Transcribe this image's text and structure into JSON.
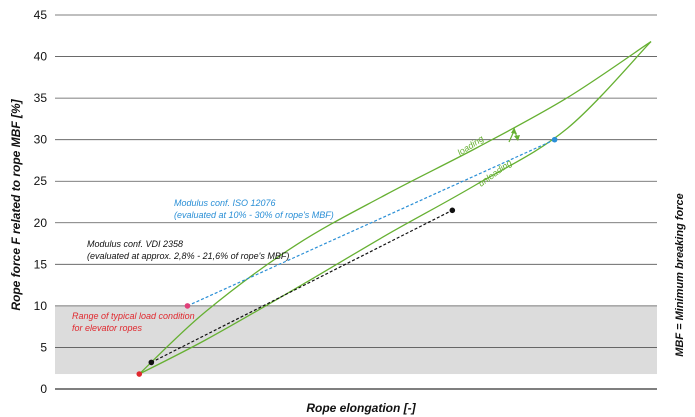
{
  "chart_data": {
    "type": "line",
    "title": "",
    "xlabel": "Rope elongation [-]",
    "ylabel": "Rope force F related to rope MBF [%]",
    "side_note": "MBF = Minimum breaking force",
    "ylim": [
      0,
      45
    ],
    "xlim": [
      0,
      100
    ],
    "yticks": [
      0,
      5,
      10,
      15,
      20,
      25,
      30,
      35,
      40,
      45
    ],
    "grid": "horizontal",
    "shaded_band": {
      "y_from": 1.8,
      "y_to": 10,
      "color": "#dcdcdc"
    },
    "series": [
      {
        "name": "loading",
        "color": "#66b032",
        "x": [
          14,
          25,
          40,
          55,
          70,
          85,
          99
        ],
        "y": [
          1.8,
          9.3,
          17.3,
          23.4,
          29.0,
          35.0,
          41.8
        ]
      },
      {
        "name": "unloading",
        "color": "#66b032",
        "x": [
          99,
          85,
          70,
          55,
          40,
          25,
          14
        ],
        "y": [
          41.8,
          31.3,
          24.6,
          18.5,
          12.1,
          5.9,
          1.8
        ]
      },
      {
        "name": "Modulus conf. ISO 12076",
        "color": "#2a8fd6",
        "dash": true,
        "x": [
          22,
          83
        ],
        "y": [
          10,
          30
        ]
      },
      {
        "name": "Modulus conf. VDI 2358",
        "color": "#111111",
        "dash": true,
        "x": [
          16,
          66
        ],
        "y": [
          3.2,
          21.5
        ]
      }
    ],
    "points": [
      {
        "x": 14,
        "y": 1.8,
        "color": "#e0282e"
      },
      {
        "x": 16,
        "y": 3.2,
        "color": "#111111"
      },
      {
        "x": 22,
        "y": 10,
        "color": "#e0407a"
      },
      {
        "x": 66,
        "y": 21.5,
        "color": "#111111"
      },
      {
        "x": 83,
        "y": 30,
        "color": "#2a8fd6"
      }
    ],
    "annotations": {
      "iso_line1": "Modulus conf. ISO 12076",
      "iso_line2": "(evaluated at 10% - 30% of rope's MBF)",
      "vdi_line1": "Modulus conf. VDI 2358",
      "vdi_line2": "(evaluated at approx. 2,8% - 21,6% of rope's MBF)",
      "range_line1": "Range of typical load condition",
      "range_line2": "for elevator ropes",
      "loading": "loading",
      "unloading": "unloading"
    },
    "colors": {
      "iso": "#2a8fd6",
      "vdi": "#111111",
      "range": "#e0282e",
      "curve": "#66b032"
    }
  }
}
